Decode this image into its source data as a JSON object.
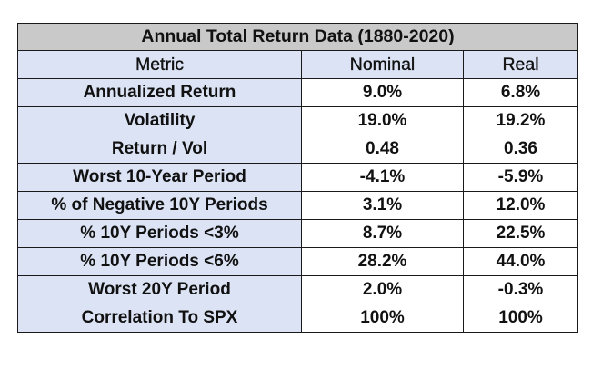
{
  "chart_data": {
    "type": "table",
    "title": "Annual Total Return Data (1880-2020)",
    "columns": [
      "Metric",
      "Nominal",
      "Real"
    ],
    "rows": [
      [
        "Annualized Return",
        "9.0%",
        "6.8%"
      ],
      [
        "Volatility",
        "19.0%",
        "19.2%"
      ],
      [
        "Return / Vol",
        "0.48",
        "0.36"
      ],
      [
        "Worst 10-Year Period",
        "-4.1%",
        "-5.9%"
      ],
      [
        "% of Negative 10Y Periods",
        "3.1%",
        "12.0%"
      ],
      [
        "% 10Y Periods <3%",
        "8.7%",
        "22.5%"
      ],
      [
        "% 10Y Periods <6%",
        "28.2%",
        "44.0%"
      ],
      [
        "Worst 20Y Period",
        "2.0%",
        "-0.3%"
      ],
      [
        "Correlation To SPX",
        "100%",
        "100%"
      ]
    ]
  },
  "colors": {
    "title_background": "#c9c9c9",
    "header_background": "#dbe3f4",
    "metric_background": "#dbe3f4",
    "value_background": "#ffffff",
    "border": "#1a1a1a"
  }
}
